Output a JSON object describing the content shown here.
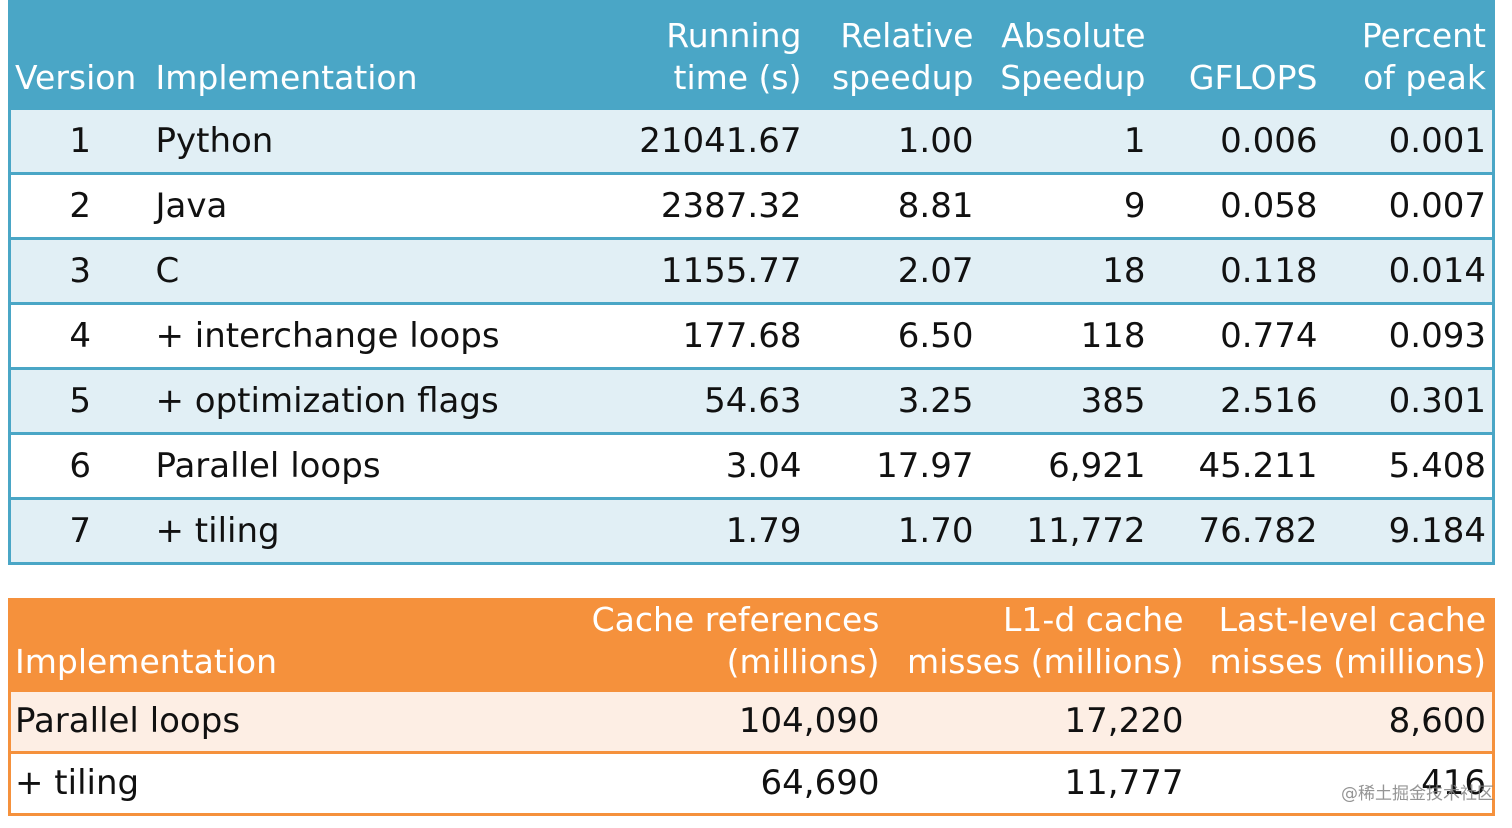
{
  "performance_table": {
    "header_color": "#4aa6c6",
    "headers": {
      "version": "Version",
      "implementation": "Implementation",
      "running_time_line1": "Running",
      "running_time_line2": "time (s)",
      "relative_speedup_line1": "Relative",
      "relative_speedup_line2": "speedup",
      "absolute_speedup_line1": "Absolute",
      "absolute_speedup_line2": "Speedup",
      "gflops": "GFLOPS",
      "percent_peak_line1": "Percent",
      "percent_peak_line2": "of peak"
    },
    "rows": [
      {
        "version": "1",
        "implementation": "Python",
        "running_time": "21041.67",
        "relative_speedup": "1.00",
        "absolute_speedup": "1",
        "gflops": "0.006",
        "percent_peak": "0.001"
      },
      {
        "version": "2",
        "implementation": "Java",
        "running_time": "2387.32",
        "relative_speedup": "8.81",
        "absolute_speedup": "9",
        "gflops": "0.058",
        "percent_peak": "0.007"
      },
      {
        "version": "3",
        "implementation": "C",
        "running_time": "1155.77",
        "relative_speedup": "2.07",
        "absolute_speedup": "18",
        "gflops": "0.118",
        "percent_peak": "0.014"
      },
      {
        "version": "4",
        "implementation": "+ interchange loops",
        "running_time": "177.68",
        "relative_speedup": "6.50",
        "absolute_speedup": "118",
        "gflops": "0.774",
        "percent_peak": "0.093"
      },
      {
        "version": "5",
        "implementation": "+ optimization flags",
        "running_time": "54.63",
        "relative_speedup": "3.25",
        "absolute_speedup": "385",
        "gflops": "2.516",
        "percent_peak": "0.301"
      },
      {
        "version": "6",
        "implementation": "Parallel loops",
        "running_time": "3.04",
        "relative_speedup": "17.97",
        "absolute_speedup": "6,921",
        "gflops": "45.211",
        "percent_peak": "5.408"
      },
      {
        "version": "7",
        "implementation": "+ tiling",
        "running_time": "1.79",
        "relative_speedup": "1.70",
        "absolute_speedup": "11,772",
        "gflops": "76.782",
        "percent_peak": "9.184"
      }
    ]
  },
  "cache_table": {
    "header_color": "#f5913c",
    "headers": {
      "implementation": "Implementation",
      "cache_refs_line1": "Cache references",
      "cache_refs_line2": "(millions)",
      "l1d_line1": "L1-d cache",
      "l1d_line2": "misses (millions)",
      "llc_line1": "Last-level cache",
      "llc_line2": "misses (millions)"
    },
    "rows": [
      {
        "implementation": "Parallel loops",
        "cache_references": "104,090",
        "l1d_misses": "17,220",
        "llc_misses": "8,600"
      },
      {
        "implementation": "+ tiling",
        "cache_references": "64,690",
        "l1d_misses": "11,777",
        "llc_misses": "416"
      }
    ]
  },
  "watermark": "@稀土掘金技术社区"
}
